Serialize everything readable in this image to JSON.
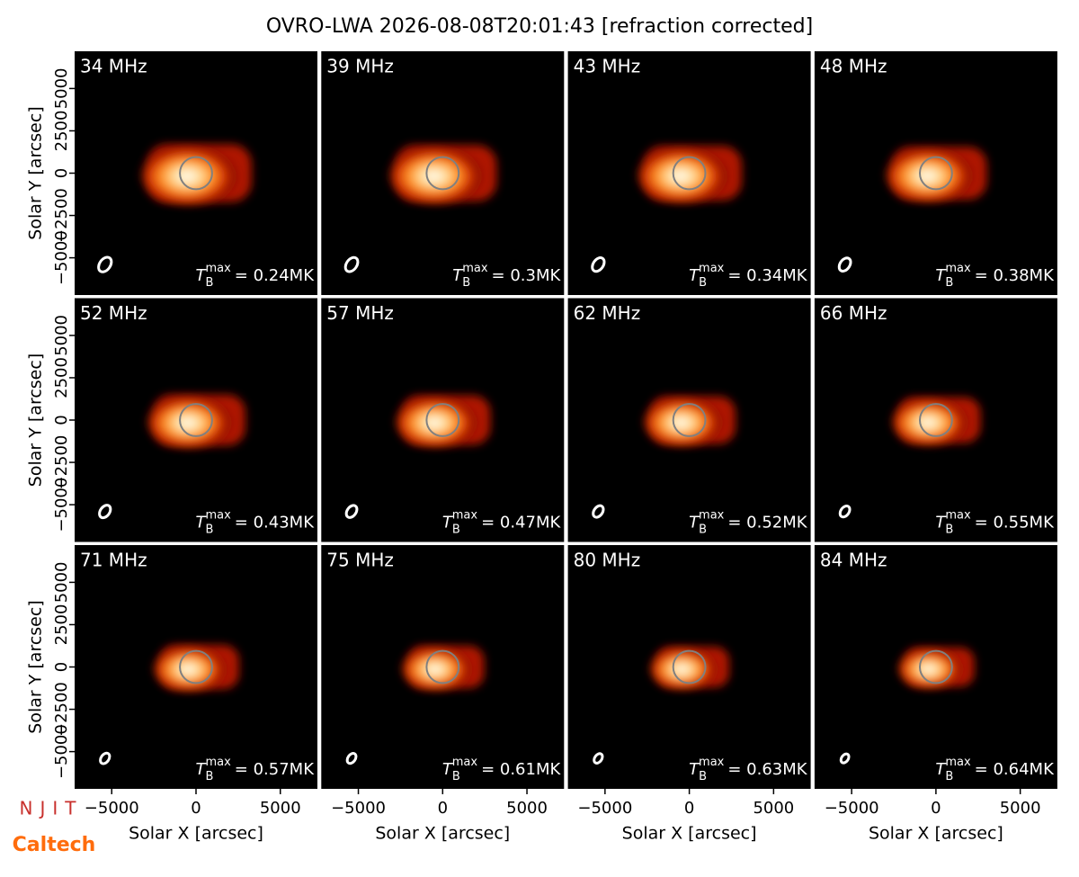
{
  "chart_data": {
    "type": "image_grid",
    "title": "OVRO-LWA 2026-08-08T20:01:43 [refraction corrected]",
    "xlabel": "Solar X [arcsec]",
    "ylabel": "Solar Y [arcsec]",
    "xlim": [
      -7200,
      7200
    ],
    "ylim": [
      -7200,
      7200
    ],
    "xticks": [
      {
        "value": -5000,
        "label": "−5000"
      },
      0,
      5000
    ],
    "yticks": [
      {
        "value": -5000,
        "label": "−5000"
      },
      {
        "value": -2500,
        "label": "−2500"
      },
      0,
      2500,
      5000
    ],
    "tb_symbol": {
      "base": "T",
      "sub": "B",
      "sup": "max"
    },
    "panels": [
      {
        "label": "34 MHz",
        "tb": "= 0.24MK"
      },
      {
        "label": "39 MHz",
        "tb": "= 0.3MK"
      },
      {
        "label": "43 MHz",
        "tb": "= 0.34MK"
      },
      {
        "label": "48 MHz",
        "tb": "= 0.38MK"
      },
      {
        "label": "52 MHz",
        "tb": "= 0.43MK"
      },
      {
        "label": "57 MHz",
        "tb": "= 0.47MK"
      },
      {
        "label": "62 MHz",
        "tb": "= 0.52MK"
      },
      {
        "label": "66 MHz",
        "tb": "= 0.55MK"
      },
      {
        "label": "71 MHz",
        "tb": "= 0.57MK"
      },
      {
        "label": "75 MHz",
        "tb": "= 0.61MK"
      },
      {
        "label": "80 MHz",
        "tb": "= 0.63MK"
      },
      {
        "label": "84 MHz",
        "tb": "= 0.64MK"
      }
    ]
  },
  "logos": [
    "NJIT",
    "Caltech"
  ]
}
